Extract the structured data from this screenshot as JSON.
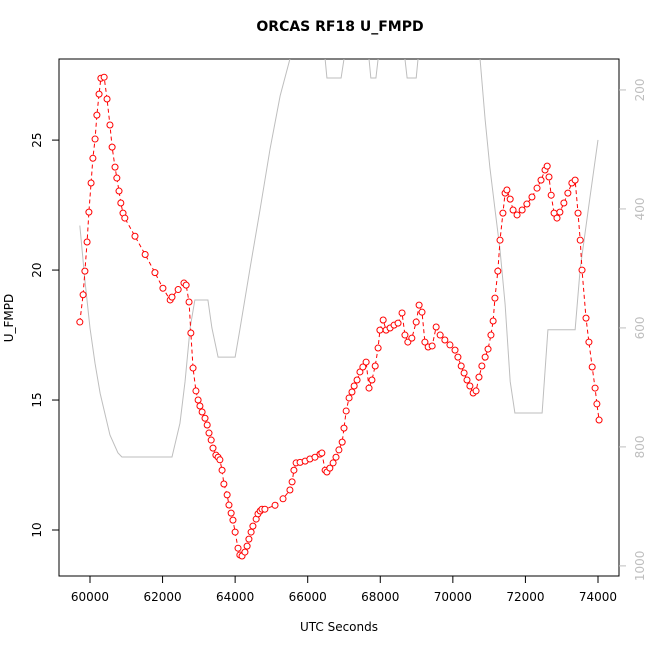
{
  "chart_data": {
    "type": "line",
    "title": "ORCAS RF18 U_FMPD",
    "x_label": "UTC Seconds",
    "y_label": "U_FMPD",
    "xlim": [
      59146,
      74579
    ],
    "xticks": [
      60000,
      62000,
      64000,
      66000,
      68000,
      70000,
      72000,
      74000
    ],
    "ylim": [
      8.23,
      28.12
    ],
    "yticks": [
      10,
      15,
      20,
      25
    ],
    "y2lim": [
      148,
      1017
    ],
    "y2ticks": [
      200,
      400,
      600,
      800,
      1000
    ],
    "y2_reversed": true,
    "series": [
      {
        "color": "#ff0000",
        "axis": "y",
        "markers": true,
        "x": [
          59720,
          59810,
          59860,
          59920,
          59970,
          60030,
          60080,
          60140,
          60190,
          60250,
          60300,
          60390,
          60470,
          60550,
          60610,
          60690,
          60740,
          60800,
          60850,
          60910,
          60960,
          61240,
          61520,
          61790,
          62010,
          62210,
          62260,
          62430,
          62590,
          62650,
          62730,
          62780,
          62840,
          62920,
          62980,
          63030,
          63090,
          63170,
          63230,
          63280,
          63340,
          63390,
          63470,
          63530,
          63580,
          63640,
          63690,
          63780,
          63830,
          63890,
          63940,
          64000,
          64080,
          64130,
          64190,
          64270,
          64330,
          64380,
          64440,
          64490,
          64580,
          64630,
          64690,
          64740,
          64820,
          65100,
          65320,
          65510,
          65570,
          65620,
          65680,
          65790,
          65930,
          66060,
          66200,
          66340,
          66390,
          66480,
          66530,
          66610,
          66700,
          66780,
          66860,
          66950,
          67000,
          67060,
          67140,
          67220,
          67280,
          67360,
          67440,
          67520,
          67610,
          67690,
          67770,
          67860,
          67940,
          67990,
          68080,
          68160,
          68270,
          68380,
          68490,
          68600,
          68680,
          68760,
          68870,
          68990,
          69070,
          69150,
          69230,
          69320,
          69430,
          69540,
          69650,
          69780,
          69920,
          70060,
          70140,
          70230,
          70310,
          70390,
          70470,
          70560,
          70640,
          70720,
          70800,
          70890,
          70970,
          71050,
          71110,
          71160,
          71240,
          71300,
          71380,
          71440,
          71490,
          71580,
          71660,
          71770,
          71910,
          72040,
          72180,
          72320,
          72430,
          72540,
          72600,
          72650,
          72710,
          72790,
          72870,
          72950,
          73060,
          73170,
          73280,
          73370,
          73450,
          73510,
          73560,
          73670,
          73750,
          73840,
          73920,
          73970,
          74030
        ],
        "values": [
          18.0,
          19.05,
          19.96,
          21.08,
          22.23,
          23.35,
          24.3,
          25.04,
          25.96,
          26.77,
          27.38,
          27.42,
          26.58,
          25.58,
          24.73,
          23.96,
          23.54,
          23.04,
          22.58,
          22.19,
          22.0,
          21.3,
          20.6,
          19.9,
          19.3,
          18.85,
          18.96,
          19.25,
          19.5,
          19.42,
          18.77,
          17.58,
          16.23,
          15.35,
          15.0,
          14.77,
          14.54,
          14.3,
          14.04,
          13.73,
          13.46,
          13.15,
          12.88,
          12.8,
          12.7,
          12.3,
          11.77,
          11.35,
          10.96,
          10.65,
          10.38,
          9.92,
          9.3,
          9.04,
          9.0,
          9.15,
          9.38,
          9.65,
          9.92,
          10.15,
          10.42,
          10.62,
          10.73,
          10.8,
          10.8,
          10.95,
          11.2,
          11.54,
          11.85,
          12.3,
          12.58,
          12.6,
          12.65,
          12.73,
          12.8,
          12.92,
          12.96,
          12.3,
          12.23,
          12.38,
          12.58,
          12.8,
          13.08,
          13.38,
          13.92,
          14.58,
          15.08,
          15.31,
          15.54,
          15.77,
          16.08,
          16.27,
          16.46,
          15.46,
          15.77,
          16.31,
          17.0,
          17.69,
          18.08,
          17.69,
          17.77,
          17.88,
          17.96,
          18.35,
          17.5,
          17.23,
          17.38,
          18.0,
          18.65,
          18.38,
          17.23,
          17.04,
          17.08,
          17.81,
          17.5,
          17.31,
          17.12,
          16.92,
          16.65,
          16.31,
          16.04,
          15.77,
          15.54,
          15.27,
          15.35,
          15.88,
          16.31,
          16.65,
          16.96,
          17.5,
          18.04,
          18.92,
          19.96,
          21.15,
          22.19,
          22.96,
          23.08,
          22.73,
          22.31,
          22.12,
          22.31,
          22.54,
          22.81,
          23.15,
          23.46,
          23.85,
          24.0,
          23.58,
          22.88,
          22.19,
          22.0,
          22.23,
          22.58,
          22.96,
          23.35,
          23.46,
          22.19,
          21.15,
          20.0,
          18.15,
          17.23,
          16.27,
          15.46,
          14.85,
          14.23
        ]
      },
      {
        "color": "#bebebe",
        "axis": "y2",
        "markers": false,
        "x": [
          59720,
          59860,
          60000,
          60140,
          60280,
          60550,
          60770,
          60880,
          62260,
          62480,
          62620,
          62760,
          62890,
          63250,
          63360,
          63530,
          64000,
          64130,
          64410,
          64690,
          64960,
          65240,
          65510,
          65900,
          66480,
          66530,
          66920,
          67000,
          67300,
          67690,
          67740,
          67880,
          67940,
          68300,
          68680,
          68740,
          68990,
          69040,
          70000,
          70750,
          70890,
          71020,
          71160,
          71300,
          71440,
          71580,
          71710,
          72460,
          72620,
          73370,
          73510,
          73780,
          74000
        ],
        "values": [
          428,
          520,
          600,
          660,
          710,
          780,
          810,
          817,
          817,
          760,
          690,
          600,
          553,
          553,
          600,
          649,
          649,
          603,
          500,
          400,
          300,
          210,
          148,
          null,
          148,
          180,
          180,
          148,
          null,
          148,
          180,
          180,
          148,
          null,
          148,
          180,
          180,
          148,
          null,
          148,
          250,
          330,
          400,
          469,
          560,
          690,
          743,
          743,
          603,
          603,
          500,
          380,
          284
        ]
      }
    ]
  }
}
